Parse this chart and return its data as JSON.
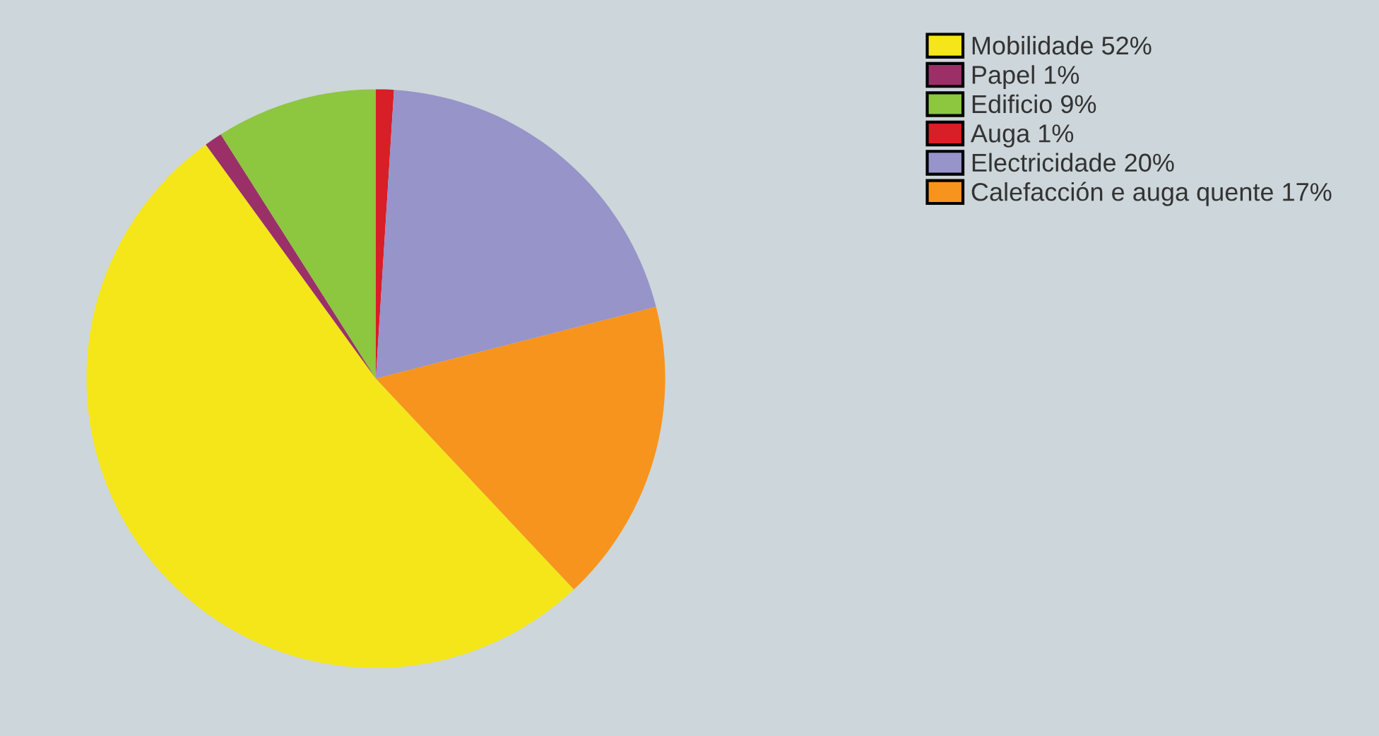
{
  "chart_data": {
    "type": "pie",
    "categories": [
      "Mobilidade 52%",
      "Papel 1%",
      "Edificio 9%",
      "Auga 1%",
      "Electricidade 20%",
      "Calefacción e auga quente 17%"
    ],
    "values": [
      52,
      1,
      9,
      1,
      20,
      17
    ],
    "colors": [
      "#f5e61a",
      "#9b3068",
      "#8dc63f",
      "#d81e26",
      "#9694c9",
      "#f7941d"
    ],
    "legend": "right"
  }
}
